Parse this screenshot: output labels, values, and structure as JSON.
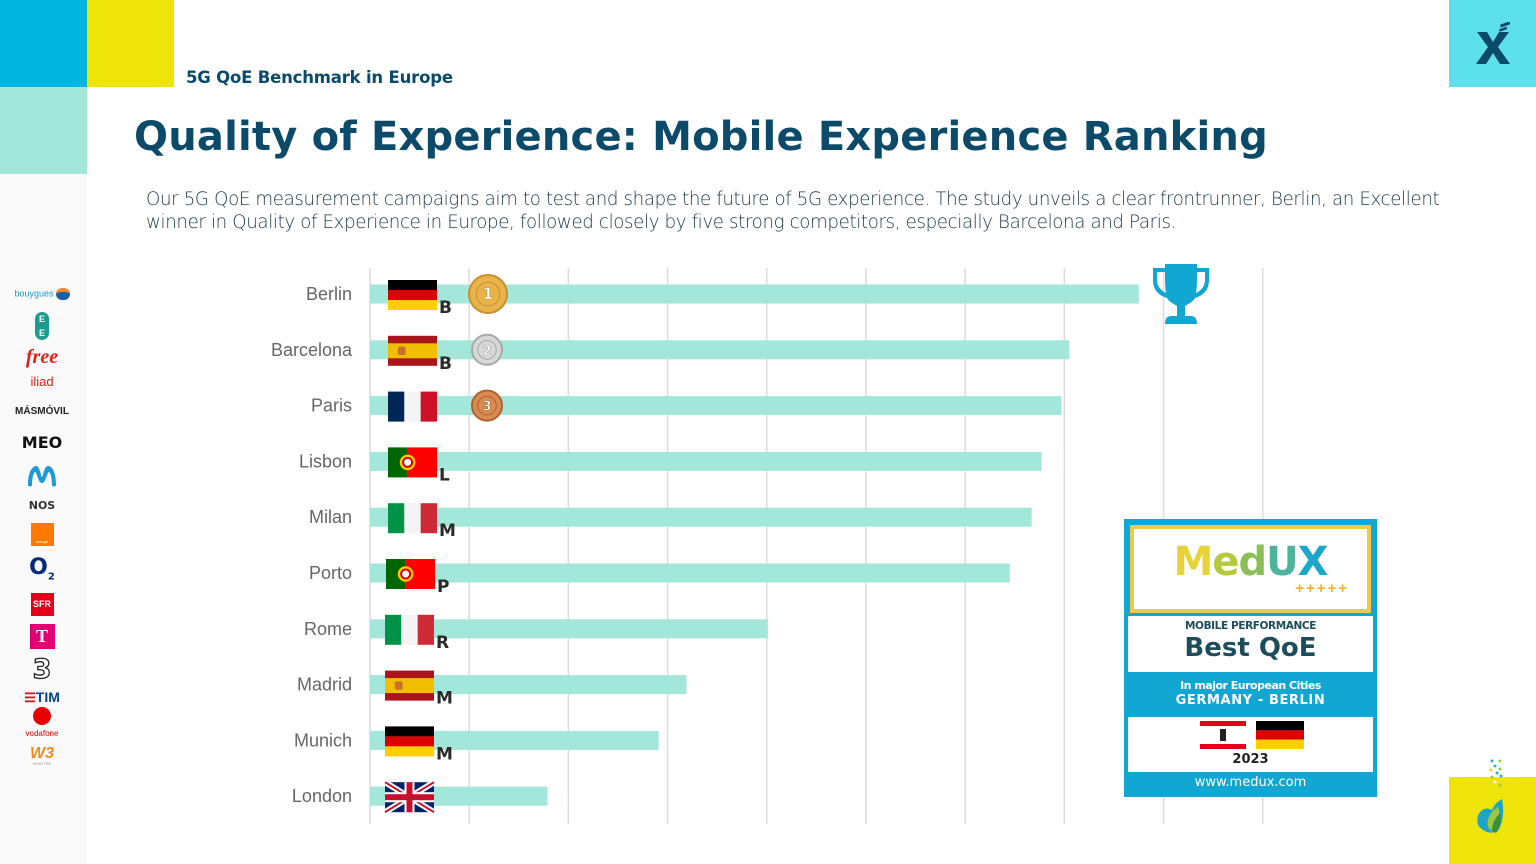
{
  "header": {
    "subtitle": "5G QoE Benchmark in Europe",
    "title": "Quality of Experience: Mobile Experience Ranking",
    "description": "Our 5G QoE measurement campaigns aim to test and shape the future of 5G experience. The study unveils a clear frontrunner, Berlin, an Excellent winner in Quality of Experience in Europe, followed closely by five strong competitors, especially Barcelona and Paris.",
    "logo_icon": "x-brand-logo-icon"
  },
  "operators": [
    {
      "name": "bouygues",
      "label": "bouygues",
      "color": "#1a9ad6"
    },
    {
      "name": "ee",
      "label": "EE",
      "color": "#1d9b8f"
    },
    {
      "name": "free",
      "label": "free",
      "color": "#e0201b"
    },
    {
      "name": "iliad",
      "label": "iliad",
      "color": "#e0201b"
    },
    {
      "name": "masmovil",
      "label": "MÁSMÓVIL",
      "color": "#222222"
    },
    {
      "name": "meo",
      "label": "MEO",
      "color": "#111111"
    },
    {
      "name": "movistar",
      "label": "M",
      "color": "#1a9bd8"
    },
    {
      "name": "nos",
      "label": "NOS",
      "color": "#333333"
    },
    {
      "name": "orange",
      "label": "orange",
      "color": "#ff7900"
    },
    {
      "name": "o2",
      "label": "O2",
      "color": "#032b7a"
    },
    {
      "name": "sfr",
      "label": "SFR",
      "color": "#e2001a"
    },
    {
      "name": "telekom",
      "label": "T",
      "color": "#e20074"
    },
    {
      "name": "three",
      "label": "3",
      "color": "#222222"
    },
    {
      "name": "tim",
      "label": "TIM",
      "color": "#004691"
    },
    {
      "name": "vodafone",
      "label": "vodafone",
      "color": "#e60000"
    },
    {
      "name": "windtre",
      "label": "W3",
      "color": "#f08a1c"
    }
  ],
  "chart_data": {
    "type": "bar",
    "orientation": "horizontal",
    "title": "",
    "xlabel": "",
    "ylabel": "",
    "units": "gridline intervals (no axis labels shown)",
    "xlim": [
      0,
      9
    ],
    "grid": true,
    "bar_color": "#a3e6da",
    "categories": [
      "Berlin",
      "Barcelona",
      "Paris",
      "Lisbon",
      "Milan",
      "Porto",
      "Rome",
      "Madrid",
      "Munich",
      "London"
    ],
    "values": [
      7.75,
      7.05,
      6.97,
      6.77,
      6.67,
      6.45,
      4.01,
      3.19,
      2.91,
      1.79
    ],
    "flags": [
      "de",
      "es",
      "fr",
      "pt",
      "it",
      "pt",
      "it",
      "es",
      "de",
      "gb"
    ],
    "city_letters": [
      "B",
      "B",
      "",
      "L",
      "M",
      "P",
      "R",
      "M",
      "M",
      ""
    ],
    "medals": [
      "1",
      "2",
      "3",
      "",
      "",
      "",
      "",
      "",
      "",
      ""
    ],
    "annotations": [
      "trophy-icon next to Berlin (winner)"
    ]
  },
  "award": {
    "brand": "MedUX",
    "plus_marks": "+++++",
    "category": "MOBILE PERFORMANCE",
    "award": "Best QoE",
    "scope": "In major European Cities",
    "location": "GERMANY - BERLIN",
    "year": "2023",
    "url": "www.medux.com"
  }
}
